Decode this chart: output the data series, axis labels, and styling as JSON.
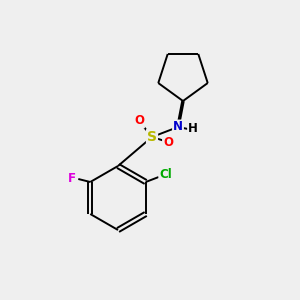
{
  "background_color": "#efefef",
  "bond_color": "#000000",
  "atom_colors": {
    "S": "#b8b800",
    "O": "#ff0000",
    "N": "#0000cc",
    "F": "#dd00dd",
    "Cl": "#00aa00",
    "H": "#000000",
    "C": "#000000"
  },
  "figsize": [
    3.0,
    3.0
  ],
  "dpi": 100,
  "lw": 1.4,
  "font_size": 8.5,
  "ring_r": 32,
  "pent_r": 26
}
